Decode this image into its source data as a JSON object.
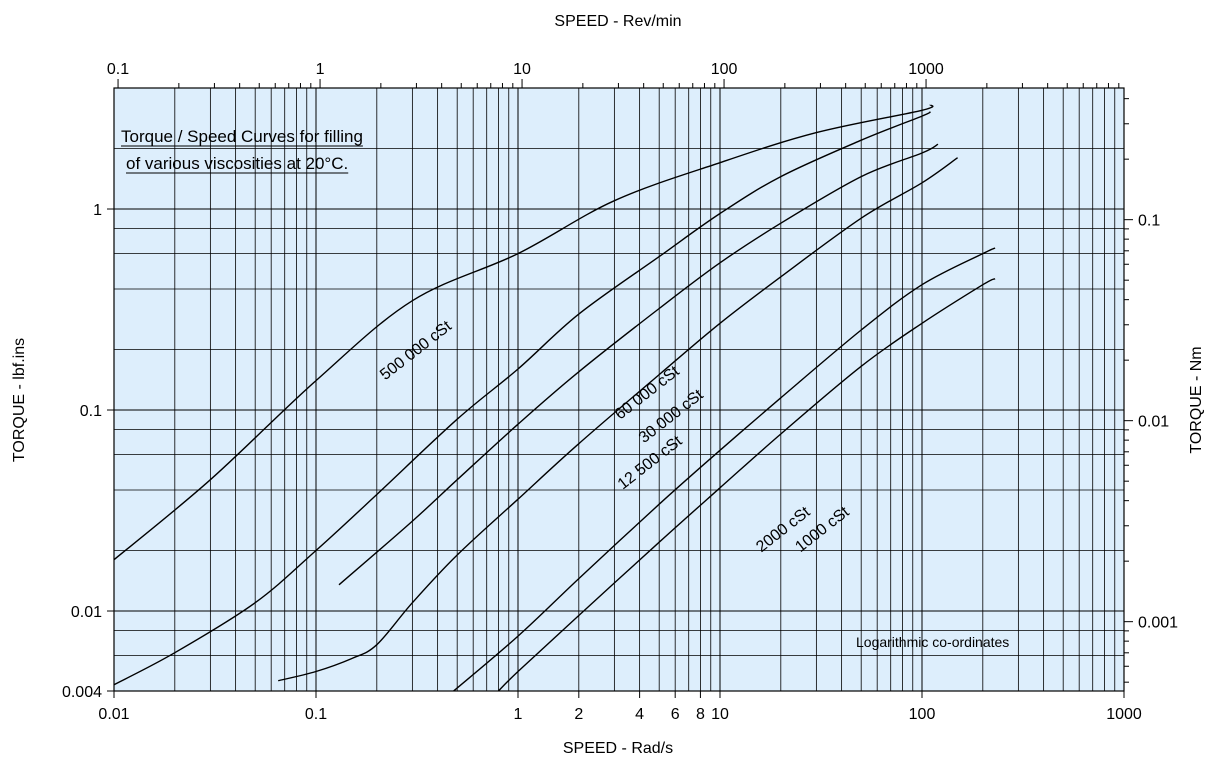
{
  "chart_data": {
    "type": "line",
    "title": "",
    "annotation": {
      "line1": "Torque / Speed Curves for filling",
      "line2": "of various viscosities at 20°C."
    },
    "note": "Logarithmic co-ordinates",
    "xlabel": "SPEED - Rad/s",
    "x2label": "SPEED - Rev/min",
    "ylabel": "TORQUE - lbf.ins",
    "y2label": "TORQUE - Nm",
    "xscale": "log",
    "yscale": "log",
    "xlim": [
      0.01,
      1000
    ],
    "ylim": [
      0.004,
      4
    ],
    "grid": true,
    "background_color": "#ddeefc",
    "line_color": "#000000",
    "x_ticks": [
      {
        "value": 0.01,
        "label": "0.01"
      },
      {
        "value": 0.1,
        "label": "0.1"
      },
      {
        "value": 1,
        "label": "1"
      },
      {
        "value": 2,
        "label": "2"
      },
      {
        "value": 4,
        "label": "4"
      },
      {
        "value": 6,
        "label": "6"
      },
      {
        "value": 8,
        "label": "8"
      },
      {
        "value": 10,
        "label": "10"
      },
      {
        "value": 100,
        "label": "100"
      },
      {
        "value": 1000,
        "label": "1000"
      }
    ],
    "y_ticks": [
      {
        "value": 0.004,
        "label": "0.004"
      },
      {
        "value": 0.01,
        "label": "0.01"
      },
      {
        "value": 0.1,
        "label": "0.1"
      },
      {
        "value": 1,
        "label": "1"
      }
    ],
    "x2_ticks": [
      {
        "value": 0.1,
        "label": "0.1"
      },
      {
        "value": 1,
        "label": "1"
      },
      {
        "value": 10,
        "label": "10"
      },
      {
        "value": 100,
        "label": "100"
      },
      {
        "value": 1000,
        "label": "1000"
      }
    ],
    "y2_ticks": [
      {
        "value": 0.001,
        "label": "0.001"
      },
      {
        "value": 0.01,
        "label": "0.01"
      },
      {
        "value": 0.1,
        "label": "0.1"
      }
    ],
    "series": [
      {
        "name": "500 000 cSt",
        "label_at": [
          0.22,
          0.14
        ],
        "points": [
          [
            0.01,
            0.018
          ],
          [
            0.03,
            0.045
          ],
          [
            0.1,
            0.14
          ],
          [
            0.3,
            0.35
          ],
          [
            1,
            0.6
          ],
          [
            3,
            1.1
          ],
          [
            10,
            1.7
          ],
          [
            30,
            2.4
          ],
          [
            100,
            3.1
          ],
          [
            110,
            3.3
          ]
        ]
      },
      {
        "name": "60 000 cSt",
        "label_at": [
          3.2,
          0.089
        ],
        "points": [
          [
            0.01,
            0.0043
          ],
          [
            0.02,
            0.0062
          ],
          [
            0.05,
            0.011
          ],
          [
            0.1,
            0.02
          ],
          [
            0.2,
            0.038
          ],
          [
            0.5,
            0.09
          ],
          [
            1,
            0.16
          ],
          [
            2,
            0.3
          ],
          [
            5,
            0.58
          ],
          [
            10,
            0.95
          ],
          [
            20,
            1.45
          ],
          [
            50,
            2.2
          ],
          [
            100,
            2.9
          ],
          [
            110,
            3.05
          ]
        ]
      },
      {
        "name": "30 000 cSt",
        "label_at": [
          4.2,
          0.068
        ],
        "points": [
          [
            0.13,
            0.0135
          ],
          [
            0.3,
            0.028
          ],
          [
            0.5,
            0.045
          ],
          [
            1,
            0.085
          ],
          [
            2,
            0.155
          ],
          [
            5,
            0.32
          ],
          [
            10,
            0.54
          ],
          [
            20,
            0.85
          ],
          [
            50,
            1.45
          ],
          [
            100,
            1.9
          ],
          [
            120,
            2.1
          ]
        ]
      },
      {
        "name": "12 500 cSt",
        "label_at": [
          3.3,
          0.04
        ],
        "points": [
          [
            0.065,
            0.0045
          ],
          [
            0.1,
            0.005
          ],
          [
            0.15,
            0.0058
          ],
          [
            0.2,
            0.0068
          ],
          [
            0.3,
            0.011
          ],
          [
            0.5,
            0.019
          ],
          [
            1,
            0.036
          ],
          [
            2,
            0.068
          ],
          [
            5,
            0.15
          ],
          [
            10,
            0.27
          ],
          [
            20,
            0.46
          ],
          [
            50,
            0.9
          ],
          [
            100,
            1.35
          ],
          [
            150,
            1.8
          ]
        ]
      },
      {
        "name": "2000 cSt",
        "label_at": [
          16,
          0.0195
        ],
        "points": [
          [
            0.48,
            0.004
          ],
          [
            1,
            0.0075
          ],
          [
            2,
            0.0145
          ],
          [
            5,
            0.034
          ],
          [
            10,
            0.063
          ],
          [
            20,
            0.115
          ],
          [
            50,
            0.25
          ],
          [
            100,
            0.42
          ],
          [
            200,
            0.6
          ],
          [
            230,
            0.64
          ]
        ]
      },
      {
        "name": "1000 cSt",
        "label_at": [
          25,
          0.0195
        ],
        "points": [
          [
            0.8,
            0.004
          ],
          [
            1,
            0.005
          ],
          [
            2,
            0.0095
          ],
          [
            5,
            0.022
          ],
          [
            10,
            0.041
          ],
          [
            20,
            0.076
          ],
          [
            50,
            0.165
          ],
          [
            100,
            0.27
          ],
          [
            200,
            0.42
          ],
          [
            230,
            0.45
          ]
        ]
      }
    ]
  }
}
